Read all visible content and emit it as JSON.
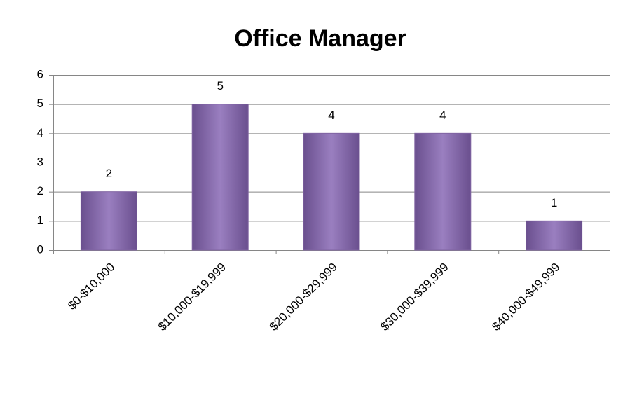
{
  "chart_data": {
    "type": "bar",
    "title": "Office Manager",
    "categories": [
      "$0-$10,000",
      "$10,000-$19,999",
      "$20,000-$29,999",
      "$30,000-$39,999",
      "$40,000-$49,999"
    ],
    "values": [
      2,
      5,
      4,
      4,
      1
    ],
    "color": "#8064a2",
    "ylim": [
      0,
      6
    ],
    "yticks": [
      0,
      1,
      2,
      3,
      4,
      5,
      6
    ],
    "grid": true
  }
}
